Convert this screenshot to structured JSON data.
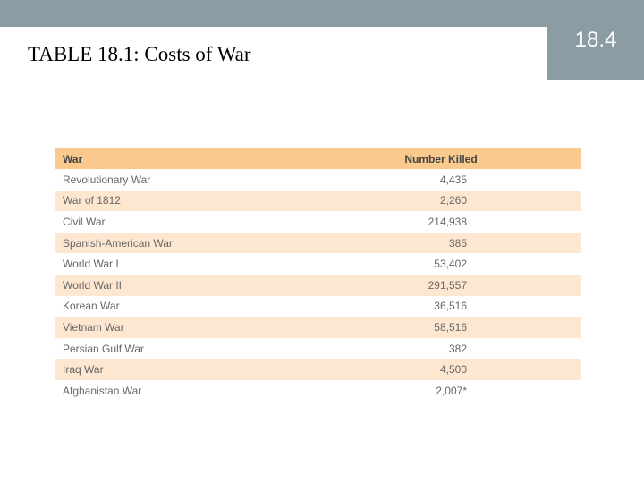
{
  "header": {
    "title": "TABLE 18.1: Costs of War",
    "slide_number": "18.4"
  },
  "table": {
    "columns": [
      "War",
      "Number Killed"
    ],
    "rows": [
      [
        "Revolutionary War",
        "4,435"
      ],
      [
        "War of 1812",
        "2,260"
      ],
      [
        "Civil War",
        "214,938"
      ],
      [
        "Spanish-American War",
        "385"
      ],
      [
        "World War I",
        "53,402"
      ],
      [
        "World War II",
        "291,557"
      ],
      [
        "Korean War",
        "36,516"
      ],
      [
        "Vietnam War",
        "58,516"
      ],
      [
        "Persian Gulf War",
        "382"
      ],
      [
        "Iraq War",
        "4,500"
      ],
      [
        "Afghanistan War",
        "2,007*"
      ]
    ]
  }
}
